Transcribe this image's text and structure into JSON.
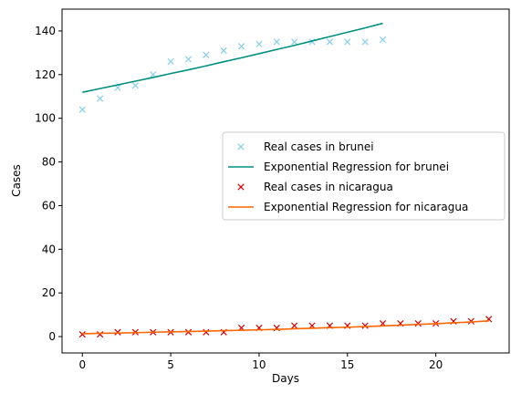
{
  "chart_data": {
    "type": "line",
    "title": "",
    "xlabel": "Days",
    "ylabel": "Cases",
    "xlim": [
      -1.15,
      24.15
    ],
    "ylim": [
      -7.5,
      150
    ],
    "xticks": [
      0,
      5,
      10,
      15,
      20
    ],
    "yticks": [
      0,
      20,
      40,
      60,
      80,
      100,
      120,
      140
    ],
    "grid": false,
    "legend_position": "center-right",
    "series": [
      {
        "name": "Real cases in brunei",
        "kind": "scatter",
        "marker": "x",
        "color": "#87ceeb",
        "x": [
          0,
          1,
          2,
          3,
          4,
          5,
          6,
          7,
          8,
          9,
          10,
          11,
          12,
          13,
          14,
          15,
          16,
          17
        ],
        "y": [
          104,
          109,
          114,
          115,
          120,
          126,
          127,
          129,
          131,
          133,
          134,
          135,
          135,
          135,
          135,
          135,
          135,
          136
        ]
      },
      {
        "name": "Exponential Regression for brunei",
        "kind": "line",
        "color": "#009080",
        "x": [
          0,
          1,
          2,
          3,
          4,
          5,
          6,
          7,
          8,
          9,
          10,
          11,
          12,
          13,
          14,
          15,
          16,
          17
        ],
        "y": [
          111.9,
          113.6,
          115.3,
          117.0,
          118.7,
          120.5,
          122.2,
          124.0,
          125.9,
          127.7,
          129.6,
          131.5,
          133.4,
          135.4,
          137.4,
          139.4,
          141.4,
          143.5
        ]
      },
      {
        "name": "Real cases in nicaragua",
        "kind": "scatter",
        "marker": "x",
        "color": "#cc0000",
        "x": [
          0,
          1,
          2,
          3,
          4,
          5,
          6,
          7,
          8,
          9,
          10,
          11,
          12,
          13,
          14,
          15,
          16,
          17,
          18,
          19,
          20,
          21,
          22,
          23
        ],
        "y": [
          1,
          1,
          2,
          2,
          2,
          2,
          2,
          2,
          2,
          4,
          4,
          4,
          5,
          5,
          5,
          5,
          5,
          6,
          6,
          6,
          6,
          7,
          7,
          8
        ]
      },
      {
        "name": "Exponential Regression for nicaragua",
        "kind": "line",
        "color": "#ff6600",
        "x": [
          0,
          1,
          2,
          3,
          4,
          5,
          6,
          7,
          8,
          9,
          10,
          11,
          12,
          13,
          14,
          15,
          16,
          17,
          18,
          19,
          20,
          21,
          22,
          23
        ],
        "y": [
          1.3,
          1.5,
          1.6,
          1.8,
          2.0,
          2.2,
          2.3,
          2.5,
          2.7,
          2.9,
          3.1,
          3.3,
          3.6,
          3.8,
          4.1,
          4.3,
          4.6,
          4.9,
          5.2,
          5.6,
          5.9,
          6.3,
          6.7,
          7.2
        ]
      }
    ]
  }
}
